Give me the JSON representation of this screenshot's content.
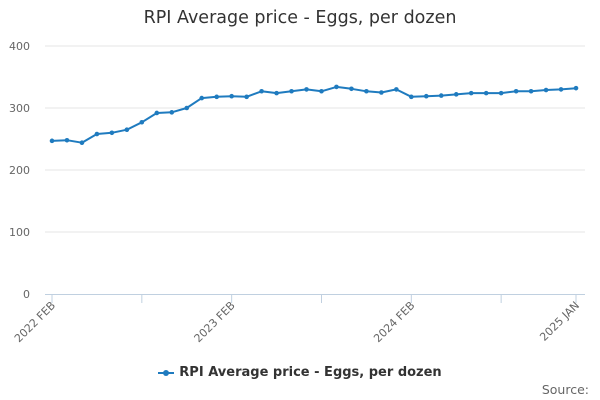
{
  "chart_data": {
    "type": "line",
    "title": "RPI Average price - Eggs, per dozen",
    "xlabel": "",
    "ylabel": "",
    "ylim": [
      0,
      400
    ],
    "yticks": [
      0,
      100,
      200,
      300,
      400
    ],
    "xticks": [
      "2022 FEB",
      "2023 FEB",
      "2024 FEB",
      "2025 JAN"
    ],
    "grid": true,
    "legend_position": "bottom",
    "color": "#1f7bbf",
    "x": [
      "2022 FEB",
      "2022 MAR",
      "2022 APR",
      "2022 MAY",
      "2022 JUN",
      "2022 JUL",
      "2022 AUG",
      "2022 SEP",
      "2022 OCT",
      "2022 NOV",
      "2022 DEC",
      "2023 JAN",
      "2023 FEB",
      "2023 MAR",
      "2023 APR",
      "2023 MAY",
      "2023 JUN",
      "2023 JUL",
      "2023 AUG",
      "2023 SEP",
      "2023 OCT",
      "2023 NOV",
      "2023 DEC",
      "2024 JAN",
      "2024 FEB",
      "2024 MAR",
      "2024 APR",
      "2024 MAY",
      "2024 JUN",
      "2024 JUL",
      "2024 AUG",
      "2024 SEP",
      "2024 OCT",
      "2024 NOV",
      "2024 DEC",
      "2025 JAN"
    ],
    "series": [
      {
        "name": "RPI Average price - Eggs, per dozen",
        "values": [
          247,
          248,
          244,
          258,
          260,
          265,
          277,
          292,
          293,
          300,
          316,
          318,
          319,
          318,
          327,
          324,
          327,
          330,
          327,
          334,
          331,
          327,
          325,
          330,
          318,
          319,
          320,
          322,
          324,
          324,
          324,
          327,
          327,
          329,
          330,
          332
        ]
      }
    ]
  },
  "source_label": "Source:"
}
